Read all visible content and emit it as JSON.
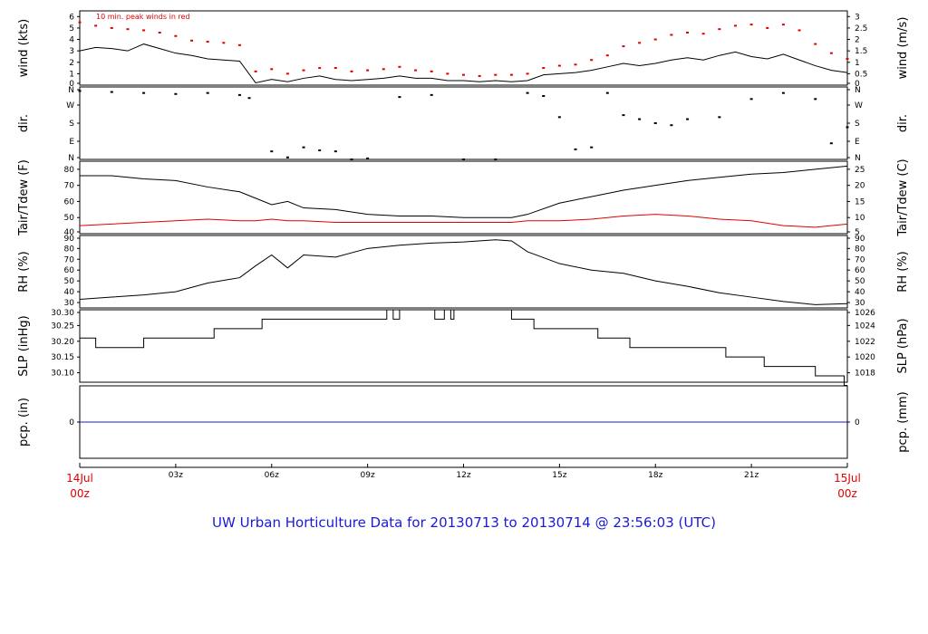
{
  "title": "UW Urban Horticulture Data for 20130713  to  20130714 @ 23:56:03  (UTC)",
  "x_axis": {
    "start": {
      "day": "14Jul",
      "time": "00z"
    },
    "end": {
      "day": "15Jul",
      "time": "00z"
    },
    "hour_ticks": [
      "03z",
      "06z",
      "09z",
      "12z",
      "15z",
      "18z",
      "21z"
    ]
  },
  "chart_data": [
    {
      "type": "line",
      "id": "wind",
      "left_label": "wind (kts)",
      "right_label": "wind (m/s)",
      "annotation": "10 min. peak winds in red",
      "left_ticks": [
        "0",
        "1",
        "2",
        "3",
        "4",
        "5",
        "6"
      ],
      "right_ticks": [
        "0",
        "0.5",
        "1",
        "1.5",
        "2",
        "2.5",
        "3"
      ],
      "ylim": [
        0,
        6.5
      ],
      "x_hours": [
        0,
        0.5,
        1,
        1.5,
        2,
        2.5,
        3,
        3.5,
        4,
        4.5,
        5,
        5.5,
        6,
        6.5,
        7,
        7.5,
        8,
        8.5,
        9,
        9.5,
        10,
        10.5,
        11,
        11.5,
        12,
        12.5,
        13,
        13.5,
        14,
        14.5,
        15,
        15.5,
        16,
        16.5,
        17,
        17.5,
        18,
        18.5,
        19,
        19.5,
        20,
        20.5,
        21,
        21.5,
        22,
        22.5,
        23,
        23.5,
        24
      ],
      "series": [
        {
          "color": "#000000",
          "values": [
            3.0,
            3.3,
            3.2,
            3.0,
            3.6,
            3.2,
            2.8,
            2.6,
            2.3,
            2.2,
            2.1,
            0.2,
            0.5,
            0.3,
            0.6,
            0.8,
            0.5,
            0.4,
            0.5,
            0.6,
            0.8,
            0.6,
            0.6,
            0.4,
            0.4,
            0.3,
            0.4,
            0.3,
            0.4,
            0.9,
            1.0,
            1.1,
            1.3,
            1.6,
            1.9,
            1.7,
            1.9,
            2.2,
            2.4,
            2.2,
            2.6,
            2.9,
            2.5,
            2.3,
            2.7,
            2.2,
            1.7,
            1.3,
            1.1
          ]
        },
        {
          "color": "#e00000",
          "style": "points",
          "values": [
            5.5,
            5.2,
            5.0,
            4.9,
            4.8,
            4.6,
            4.3,
            3.9,
            3.8,
            3.7,
            3.5,
            1.2,
            1.4,
            1.0,
            1.3,
            1.5,
            1.5,
            1.2,
            1.3,
            1.4,
            1.6,
            1.3,
            1.2,
            1.0,
            0.9,
            0.8,
            0.9,
            0.9,
            1.0,
            1.5,
            1.7,
            1.8,
            2.2,
            2.6,
            3.4,
            3.7,
            4.0,
            4.4,
            4.6,
            4.5,
            4.9,
            5.2,
            5.3,
            5.0,
            5.3,
            4.8,
            3.6,
            2.8,
            2.3
          ]
        }
      ]
    },
    {
      "type": "scatter",
      "id": "dir",
      "left_label": "dir.",
      "right_label": "dir.",
      "left_ticks": [
        "N",
        "E",
        "S",
        "W",
        "N"
      ],
      "right_ticks": [
        "N",
        "E",
        "S",
        "W",
        "N"
      ],
      "ylim": [
        0,
        360
      ],
      "x_hours": [
        0,
        1,
        2,
        3,
        4,
        5,
        5.3,
        6,
        6.5,
        7,
        7.5,
        8,
        8.5,
        9,
        10,
        11,
        12,
        13,
        14,
        14.5,
        15,
        15.5,
        16,
        16.5,
        17,
        17.5,
        18,
        18.5,
        19,
        20,
        21,
        22,
        23,
        23.5,
        24
      ],
      "series": [
        {
          "name": "",
          "color": "#000000",
          "values": [
            340,
            335,
            330,
            325,
            330,
            320,
            305,
            40,
            10,
            60,
            45,
            40,
            0,
            5,
            310,
            320,
            0,
            0,
            330,
            315,
            210,
            50,
            60,
            330,
            220,
            200,
            180,
            170,
            200,
            210,
            300,
            330,
            300,
            80,
            160
          ]
        }
      ]
    },
    {
      "type": "line",
      "id": "temp",
      "left_label": "Tair/Tdew (F)",
      "right_label": "Tair/Tdew (C)",
      "left_ticks": [
        "40",
        "50",
        "60",
        "70",
        "80"
      ],
      "right_ticks": [
        "5",
        "10",
        "15",
        "20",
        "25"
      ],
      "ylim": [
        40,
        85
      ],
      "x_hours": [
        0,
        1,
        2,
        3,
        4,
        5,
        5.5,
        6,
        6.5,
        7,
        8,
        9,
        10,
        11,
        12,
        13,
        13.5,
        14,
        15,
        16,
        17,
        18,
        19,
        20,
        21,
        22,
        23,
        24
      ],
      "series": [
        {
          "name": "",
          "color": "#000000",
          "values": [
            76,
            76,
            74,
            73,
            69,
            66,
            62,
            58,
            60,
            56,
            55,
            52,
            51,
            51,
            50,
            50,
            50,
            52,
            59,
            63,
            67,
            70,
            73,
            75,
            77,
            78,
            80,
            82
          ]
        },
        {
          "name": "",
          "color": "#e00000",
          "values": [
            45,
            46,
            47,
            48,
            49,
            48,
            48,
            49,
            48,
            48,
            47,
            47,
            47,
            47,
            47,
            47,
            47,
            48,
            48,
            49,
            51,
            52,
            51,
            49,
            48,
            45,
            44,
            46
          ]
        }
      ]
    },
    {
      "type": "line",
      "id": "rh",
      "left_label": "RH (%)",
      "right_label": "RH (%)",
      "left_ticks": [
        "30",
        "40",
        "50",
        "60",
        "70",
        "80",
        "90"
      ],
      "right_ticks": [
        "30",
        "40",
        "50",
        "60",
        "70",
        "80",
        "90"
      ],
      "ylim": [
        25,
        92
      ],
      "x_hours": [
        0,
        1,
        2,
        3,
        4,
        5,
        5.5,
        6,
        6.5,
        7,
        8,
        9,
        10,
        11,
        12,
        13,
        13.5,
        14,
        15,
        16,
        17,
        18,
        19,
        20,
        21,
        22,
        23,
        24
      ],
      "series": [
        {
          "name": "",
          "color": "#000000",
          "values": [
            33,
            35,
            37,
            40,
            48,
            53,
            64,
            74,
            62,
            74,
            72,
            80,
            83,
            85,
            86,
            88,
            87,
            77,
            66,
            60,
            57,
            50,
            45,
            39,
            35,
            31,
            28,
            29
          ]
        }
      ]
    },
    {
      "type": "line",
      "id": "slp",
      "left_label": "SLP (inHg)",
      "right_label": "SLP (hPa)",
      "left_ticks": [
        "30.10",
        "30.15",
        "30.20",
        "30.25",
        "30.30"
      ],
      "right_ticks": [
        "1018",
        "1020",
        "1022",
        "1024",
        "1026"
      ],
      "step": true,
      "ylim": [
        30.07,
        30.3
      ],
      "x_hours": [
        0,
        0.5,
        2,
        4.2,
        5.7,
        9.6,
        9.8,
        10,
        10.4,
        11.1,
        11.4,
        11.6,
        11.7,
        12,
        13.5,
        14.2,
        15.6,
        16.2,
        17.2,
        19.4,
        20.2,
        21.4,
        22.3,
        23.0,
        23.9,
        24
      ],
      "series": [
        {
          "name": "",
          "color": "#000000",
          "values": [
            30.21,
            30.18,
            30.21,
            30.24,
            30.27,
            30.3,
            30.27,
            30.3,
            30.3,
            30.27,
            30.3,
            30.27,
            30.3,
            30.3,
            30.27,
            30.24,
            30.24,
            30.21,
            30.18,
            30.18,
            30.15,
            30.12,
            30.12,
            30.09,
            30.06,
            30.06
          ]
        }
      ]
    },
    {
      "type": "line",
      "id": "pcp",
      "left_label": "pcp. (in)",
      "right_label": "pcp. (mm)",
      "left_ticks": [
        "0"
      ],
      "right_ticks": [
        "0"
      ],
      "ylim": [
        -1,
        1
      ],
      "x_hours": [
        0,
        24
      ],
      "series": [
        {
          "name": "",
          "color": "#1a1ad6",
          "values": [
            0,
            0
          ]
        }
      ]
    }
  ]
}
